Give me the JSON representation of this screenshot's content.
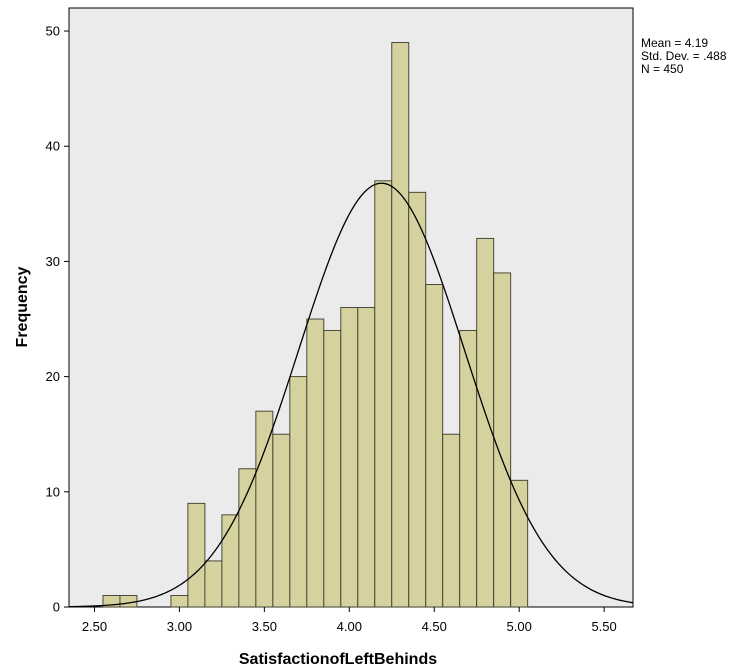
{
  "chart_data": {
    "type": "bar",
    "title": "",
    "xlabel": "SatisfactionofLeftBehinds",
    "ylabel": "Frequency",
    "xlim": [
      2.35,
      5.67
    ],
    "ylim": [
      0,
      52
    ],
    "x_ticks": [
      "2.50",
      "3.00",
      "3.50",
      "4.00",
      "4.50",
      "5.00",
      "5.50"
    ],
    "y_ticks": [
      "0",
      "10",
      "20",
      "30",
      "40",
      "50"
    ],
    "bin_width": 0.1,
    "bins": [
      {
        "start": 2.55,
        "count": 1
      },
      {
        "start": 2.65,
        "count": 1
      },
      {
        "start": 2.95,
        "count": 1
      },
      {
        "start": 3.05,
        "count": 9
      },
      {
        "start": 3.15,
        "count": 4
      },
      {
        "start": 3.25,
        "count": 8
      },
      {
        "start": 3.35,
        "count": 12
      },
      {
        "start": 3.45,
        "count": 17
      },
      {
        "start": 3.55,
        "count": 15
      },
      {
        "start": 3.65,
        "count": 20
      },
      {
        "start": 3.75,
        "count": 25
      },
      {
        "start": 3.85,
        "count": 24
      },
      {
        "start": 3.95,
        "count": 26
      },
      {
        "start": 4.05,
        "count": 26
      },
      {
        "start": 4.15,
        "count": 37
      },
      {
        "start": 4.25,
        "count": 49
      },
      {
        "start": 4.35,
        "count": 36
      },
      {
        "start": 4.45,
        "count": 28
      },
      {
        "start": 4.55,
        "count": 15
      },
      {
        "start": 4.65,
        "count": 24
      },
      {
        "start": 4.75,
        "count": 32
      },
      {
        "start": 4.85,
        "count": 29
      },
      {
        "start": 4.95,
        "count": 11
      }
    ],
    "normal_curve": {
      "mean": 4.19,
      "std": 0.488,
      "n": 450
    },
    "stats": {
      "mean": "Mean = 4.19",
      "std": "Std. Dev. = .488",
      "n": "N = 450"
    },
    "grid": false,
    "legend": "none"
  },
  "colors": {
    "bar_fill": "#d6d2a0",
    "bar_stroke": "#3a3a2a",
    "plot_background": "#ebebeb",
    "curve": "#000000"
  }
}
